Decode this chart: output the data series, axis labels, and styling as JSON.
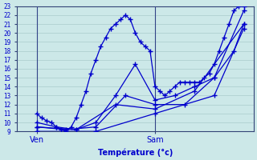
{
  "xlabel": "Température (°c)",
  "background_color": "#cce8e8",
  "line_color": "#0000cc",
  "marker": "+",
  "markersize": 4,
  "linewidth": 0.9,
  "ylim": [
    9,
    23
  ],
  "xlim": [
    0,
    48
  ],
  "yticks": [
    9,
    10,
    11,
    12,
    13,
    14,
    15,
    16,
    17,
    18,
    19,
    20,
    21,
    22,
    23
  ],
  "xtick_labels": [
    "Ven",
    "Sam"
  ],
  "xtick_positions": [
    4,
    28
  ],
  "grid_color": "#aacccc",
  "vline_x": [
    4,
    28
  ],
  "series": [
    {
      "x": [
        4,
        5,
        6,
        7,
        8,
        9,
        10,
        11,
        12,
        13,
        14,
        15,
        16,
        17,
        18,
        19,
        20,
        21,
        22,
        23,
        24,
        25,
        26,
        27,
        28,
        29,
        30,
        31,
        32,
        33,
        34,
        35,
        36,
        37,
        38,
        39,
        40,
        41,
        42,
        43,
        44,
        45,
        46
      ],
      "y": [
        11,
        10.5,
        10.2,
        10,
        9.5,
        9.2,
        9,
        9.5,
        10.5,
        12,
        13.5,
        15.5,
        17,
        18.5,
        19.5,
        20.5,
        21,
        21.5,
        22,
        21.5,
        20,
        19,
        18.5,
        18,
        14,
        13.5,
        13,
        13.5,
        14,
        14.5,
        14.5,
        14.5,
        14.5,
        14.5,
        15,
        15.5,
        16.5,
        18,
        19.5,
        21,
        22.5,
        23,
        23
      ]
    },
    {
      "x": [
        4,
        8,
        12,
        16,
        20,
        24,
        28,
        32,
        36,
        40,
        44,
        46
      ],
      "y": [
        10,
        9.5,
        9.2,
        10,
        13,
        16.5,
        12.5,
        13,
        14,
        15,
        18,
        21
      ]
    },
    {
      "x": [
        4,
        10,
        16,
        22,
        28,
        34,
        40,
        46
      ],
      "y": [
        9.5,
        9.2,
        9.5,
        13,
        12,
        12,
        15,
        22.5
      ]
    },
    {
      "x": [
        4,
        12,
        20,
        28,
        36,
        46
      ],
      "y": [
        9.5,
        9.2,
        12,
        11.5,
        13.5,
        21
      ]
    },
    {
      "x": [
        4,
        16,
        28,
        40,
        46
      ],
      "y": [
        9,
        9,
        11,
        13,
        20.5
      ]
    }
  ]
}
